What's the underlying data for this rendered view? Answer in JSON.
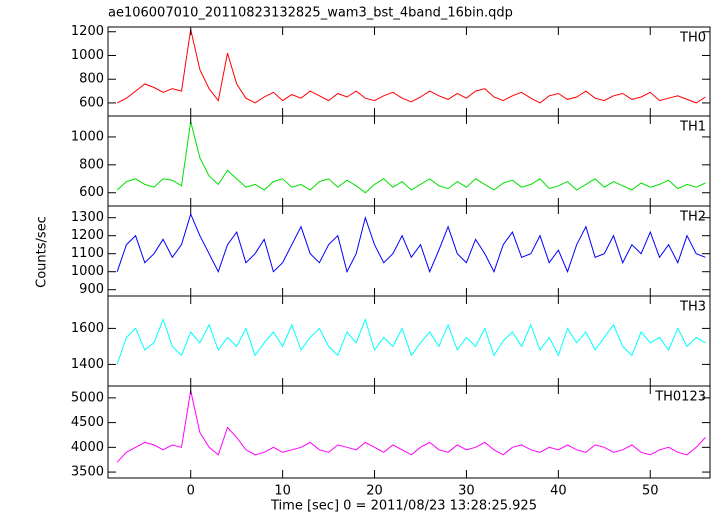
{
  "chart_data": {
    "type": "line",
    "title": "ae106007010_20110823132825_wam3_bst_4band_16bin.qdp",
    "x_label": "Time [sec] 0 = 2011/08/23 13:28:25.925",
    "y_label": "Counts/sec",
    "xlim": [
      -9,
      56.5
    ],
    "xticks": [
      0,
      10,
      20,
      30,
      40,
      50
    ],
    "x": [
      -8,
      -7,
      -6,
      -5,
      -4,
      -3,
      -2,
      -1,
      0,
      1,
      2,
      3,
      4,
      5,
      6,
      7,
      8,
      9,
      10,
      11,
      12,
      13,
      14,
      15,
      16,
      17,
      18,
      19,
      20,
      21,
      22,
      23,
      24,
      25,
      26,
      27,
      28,
      29,
      30,
      31,
      32,
      33,
      34,
      35,
      36,
      37,
      38,
      39,
      40,
      41,
      42,
      43,
      44,
      45,
      46,
      47,
      48,
      49,
      50,
      51,
      52,
      53,
      54,
      55,
      56
    ],
    "series": [
      {
        "name": "TH0",
        "color": "#ff0000",
        "ylim": [
          490,
          1240
        ],
        "yticks": [
          600,
          800,
          1000,
          1200
        ],
        "values": [
          600,
          640,
          700,
          760,
          730,
          690,
          720,
          700,
          1220,
          880,
          720,
          620,
          1020,
          760,
          640,
          600,
          650,
          690,
          620,
          670,
          640,
          700,
          660,
          620,
          680,
          650,
          700,
          640,
          620,
          660,
          690,
          640,
          610,
          650,
          700,
          660,
          630,
          680,
          640,
          700,
          720,
          650,
          620,
          660,
          690,
          640,
          600,
          660,
          680,
          630,
          650,
          700,
          640,
          620,
          660,
          680,
          630,
          650,
          690,
          620,
          640,
          660,
          630,
          600,
          650
        ]
      },
      {
        "name": "TH1",
        "color": "#00e000",
        "ylim": [
          505,
          1150
        ],
        "yticks": [
          600,
          800,
          1000
        ],
        "values": [
          620,
          680,
          700,
          660,
          640,
          700,
          690,
          650,
          1110,
          850,
          720,
          660,
          760,
          700,
          640,
          660,
          620,
          680,
          700,
          640,
          660,
          620,
          680,
          700,
          640,
          690,
          650,
          600,
          660,
          700,
          640,
          680,
          620,
          660,
          700,
          650,
          630,
          680,
          640,
          700,
          660,
          620,
          670,
          690,
          640,
          660,
          700,
          630,
          650,
          680,
          620,
          660,
          700,
          640,
          680,
          650,
          620,
          670,
          640,
          660,
          690,
          630,
          660,
          640,
          670
        ]
      },
      {
        "name": "TH2",
        "color": "#0000ff",
        "ylim": [
          865,
          1365
        ],
        "yticks": [
          900,
          1000,
          1100,
          1200,
          1300
        ],
        "values": [
          1000,
          1150,
          1200,
          1050,
          1100,
          1180,
          1080,
          1150,
          1320,
          1200,
          1100,
          1000,
          1150,
          1220,
          1050,
          1100,
          1180,
          1000,
          1050,
          1150,
          1250,
          1100,
          1050,
          1150,
          1200,
          1000,
          1100,
          1300,
          1150,
          1050,
          1100,
          1200,
          1080,
          1150,
          1000,
          1120,
          1250,
          1100,
          1050,
          1180,
          1100,
          1000,
          1150,
          1220,
          1080,
          1100,
          1200,
          1050,
          1120,
          1000,
          1150,
          1250,
          1080,
          1100,
          1200,
          1050,
          1150,
          1100,
          1220,
          1080,
          1150,
          1050,
          1200,
          1100,
          1080
        ]
      },
      {
        "name": "TH3",
        "color": "#00ffff",
        "ylim": [
          1280,
          1780
        ],
        "yticks": [
          1400,
          1600
        ],
        "values": [
          1400,
          1550,
          1600,
          1480,
          1520,
          1650,
          1500,
          1450,
          1580,
          1520,
          1620,
          1480,
          1550,
          1500,
          1600,
          1450,
          1520,
          1580,
          1500,
          1620,
          1480,
          1550,
          1600,
          1500,
          1450,
          1580,
          1520,
          1650,
          1480,
          1550,
          1500,
          1600,
          1450,
          1520,
          1580,
          1500,
          1620,
          1480,
          1550,
          1500,
          1600,
          1450,
          1530,
          1580,
          1500,
          1620,
          1480,
          1550,
          1450,
          1600,
          1520,
          1580,
          1480,
          1550,
          1620,
          1500,
          1450,
          1580,
          1520,
          1550,
          1480,
          1600,
          1500,
          1550,
          1520
        ]
      },
      {
        "name": "TH0123",
        "color": "#ff00ff",
        "ylim": [
          3380,
          5240
        ],
        "yticks": [
          3500,
          4000,
          4500,
          5000
        ],
        "values": [
          3700,
          3900,
          4000,
          4100,
          4050,
          3950,
          4050,
          4000,
          5150,
          4300,
          4000,
          3850,
          4400,
          4200,
          3950,
          3850,
          3900,
          4000,
          3900,
          3950,
          4000,
          4100,
          3950,
          3900,
          4050,
          4000,
          3950,
          4100,
          4000,
          3900,
          4050,
          3950,
          3850,
          4000,
          4100,
          3950,
          3900,
          4050,
          3950,
          4000,
          4100,
          3950,
          3850,
          4000,
          4050,
          3950,
          3900,
          4000,
          3950,
          4050,
          3950,
          3900,
          4050,
          4000,
          3900,
          3950,
          4050,
          3900,
          3850,
          3950,
          4000,
          3900,
          3850,
          4000,
          4200
        ]
      }
    ]
  }
}
